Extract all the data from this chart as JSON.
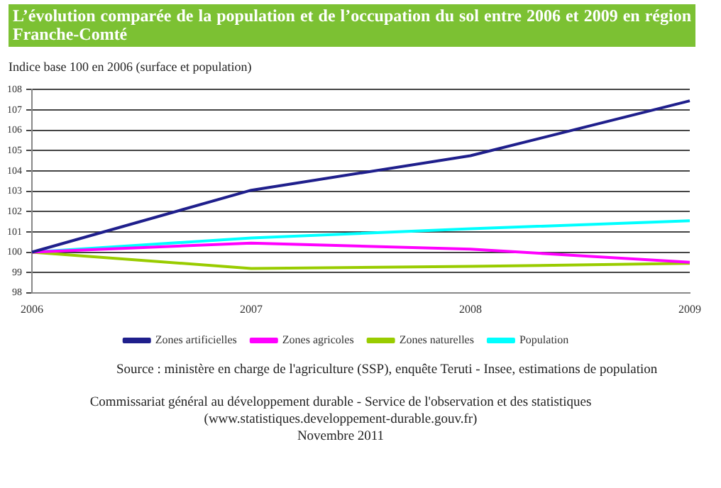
{
  "chart_data": {
    "type": "line",
    "title": "L’évolution comparée de la population et de l’occupation du sol entre 2006 et 2009 en région Franche-Comté",
    "ylabel": "Indice base 100 en 2006 (surface et population)",
    "categories": [
      "2006",
      "2007",
      "2008",
      "2009"
    ],
    "series": [
      {
        "name": "Zones artificielles",
        "color": "#1f1f8c",
        "values": [
          100,
          103.05,
          104.75,
          107.45
        ]
      },
      {
        "name": "Zones agricoles",
        "color": "#ff00ff",
        "values": [
          100,
          100.45,
          100.15,
          99.5
        ]
      },
      {
        "name": "Zones naturelles",
        "color": "#99cc00",
        "values": [
          100,
          99.2,
          99.3,
          99.45
        ]
      },
      {
        "name": "Population",
        "color": "#00ffff",
        "values": [
          100,
          100.7,
          101.15,
          101.55
        ]
      }
    ],
    "ylim": [
      98,
      108
    ],
    "yticks": [
      98,
      99,
      100,
      101,
      102,
      103,
      104,
      105,
      106,
      107,
      108
    ],
    "grid": "y",
    "legend": "bottom",
    "marker": "none",
    "line_style": "solid",
    "annotations": [
      "Source : ministère en charge de l'agriculture (SSP), enquête Teruti - Insee, estimations de population",
      "Commissariat général au développement durable - Service de l'observation et des statistiques",
      "(www.statistiques.developpement-durable.gouv.fr)",
      "Novembre 2011"
    ]
  }
}
